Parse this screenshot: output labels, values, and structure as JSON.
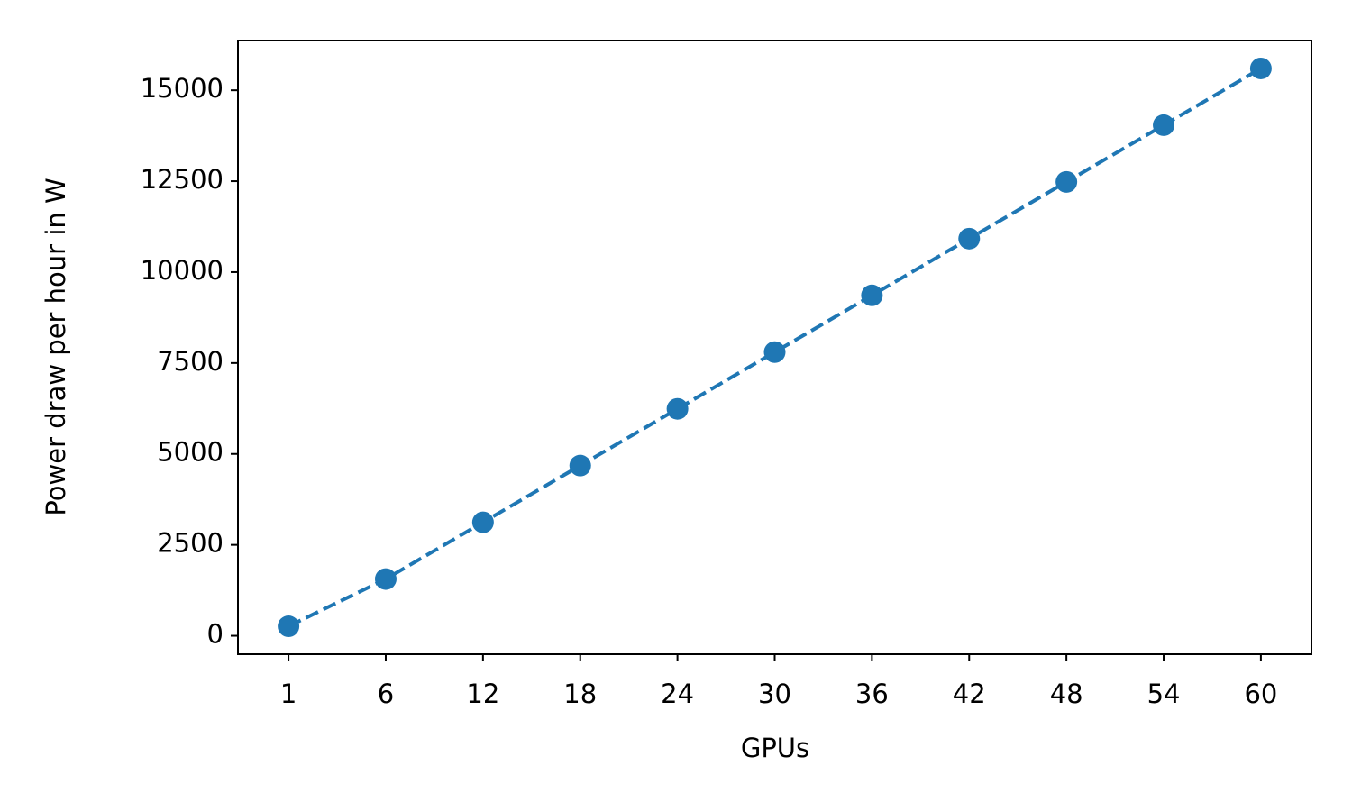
{
  "chart_data": {
    "type": "line",
    "x_label": "GPUs",
    "y_label": "Power draw per hour in W",
    "categories": [
      "1",
      "6",
      "12",
      "18",
      "24",
      "30",
      "36",
      "42",
      "48",
      "54",
      "60"
    ],
    "series": [
      {
        "color": "#1f77b4",
        "linestyle": "dashed",
        "marker": "circle",
        "values": [
          260,
          1560,
          3120,
          4680,
          6240,
          7800,
          9360,
          10920,
          12480,
          14040,
          15600
        ]
      }
    ],
    "ylim": [
      -507,
      16367
    ],
    "yticks": [
      0,
      2500,
      5000,
      7500,
      10000,
      12500,
      15000
    ],
    "grid": false
  }
}
